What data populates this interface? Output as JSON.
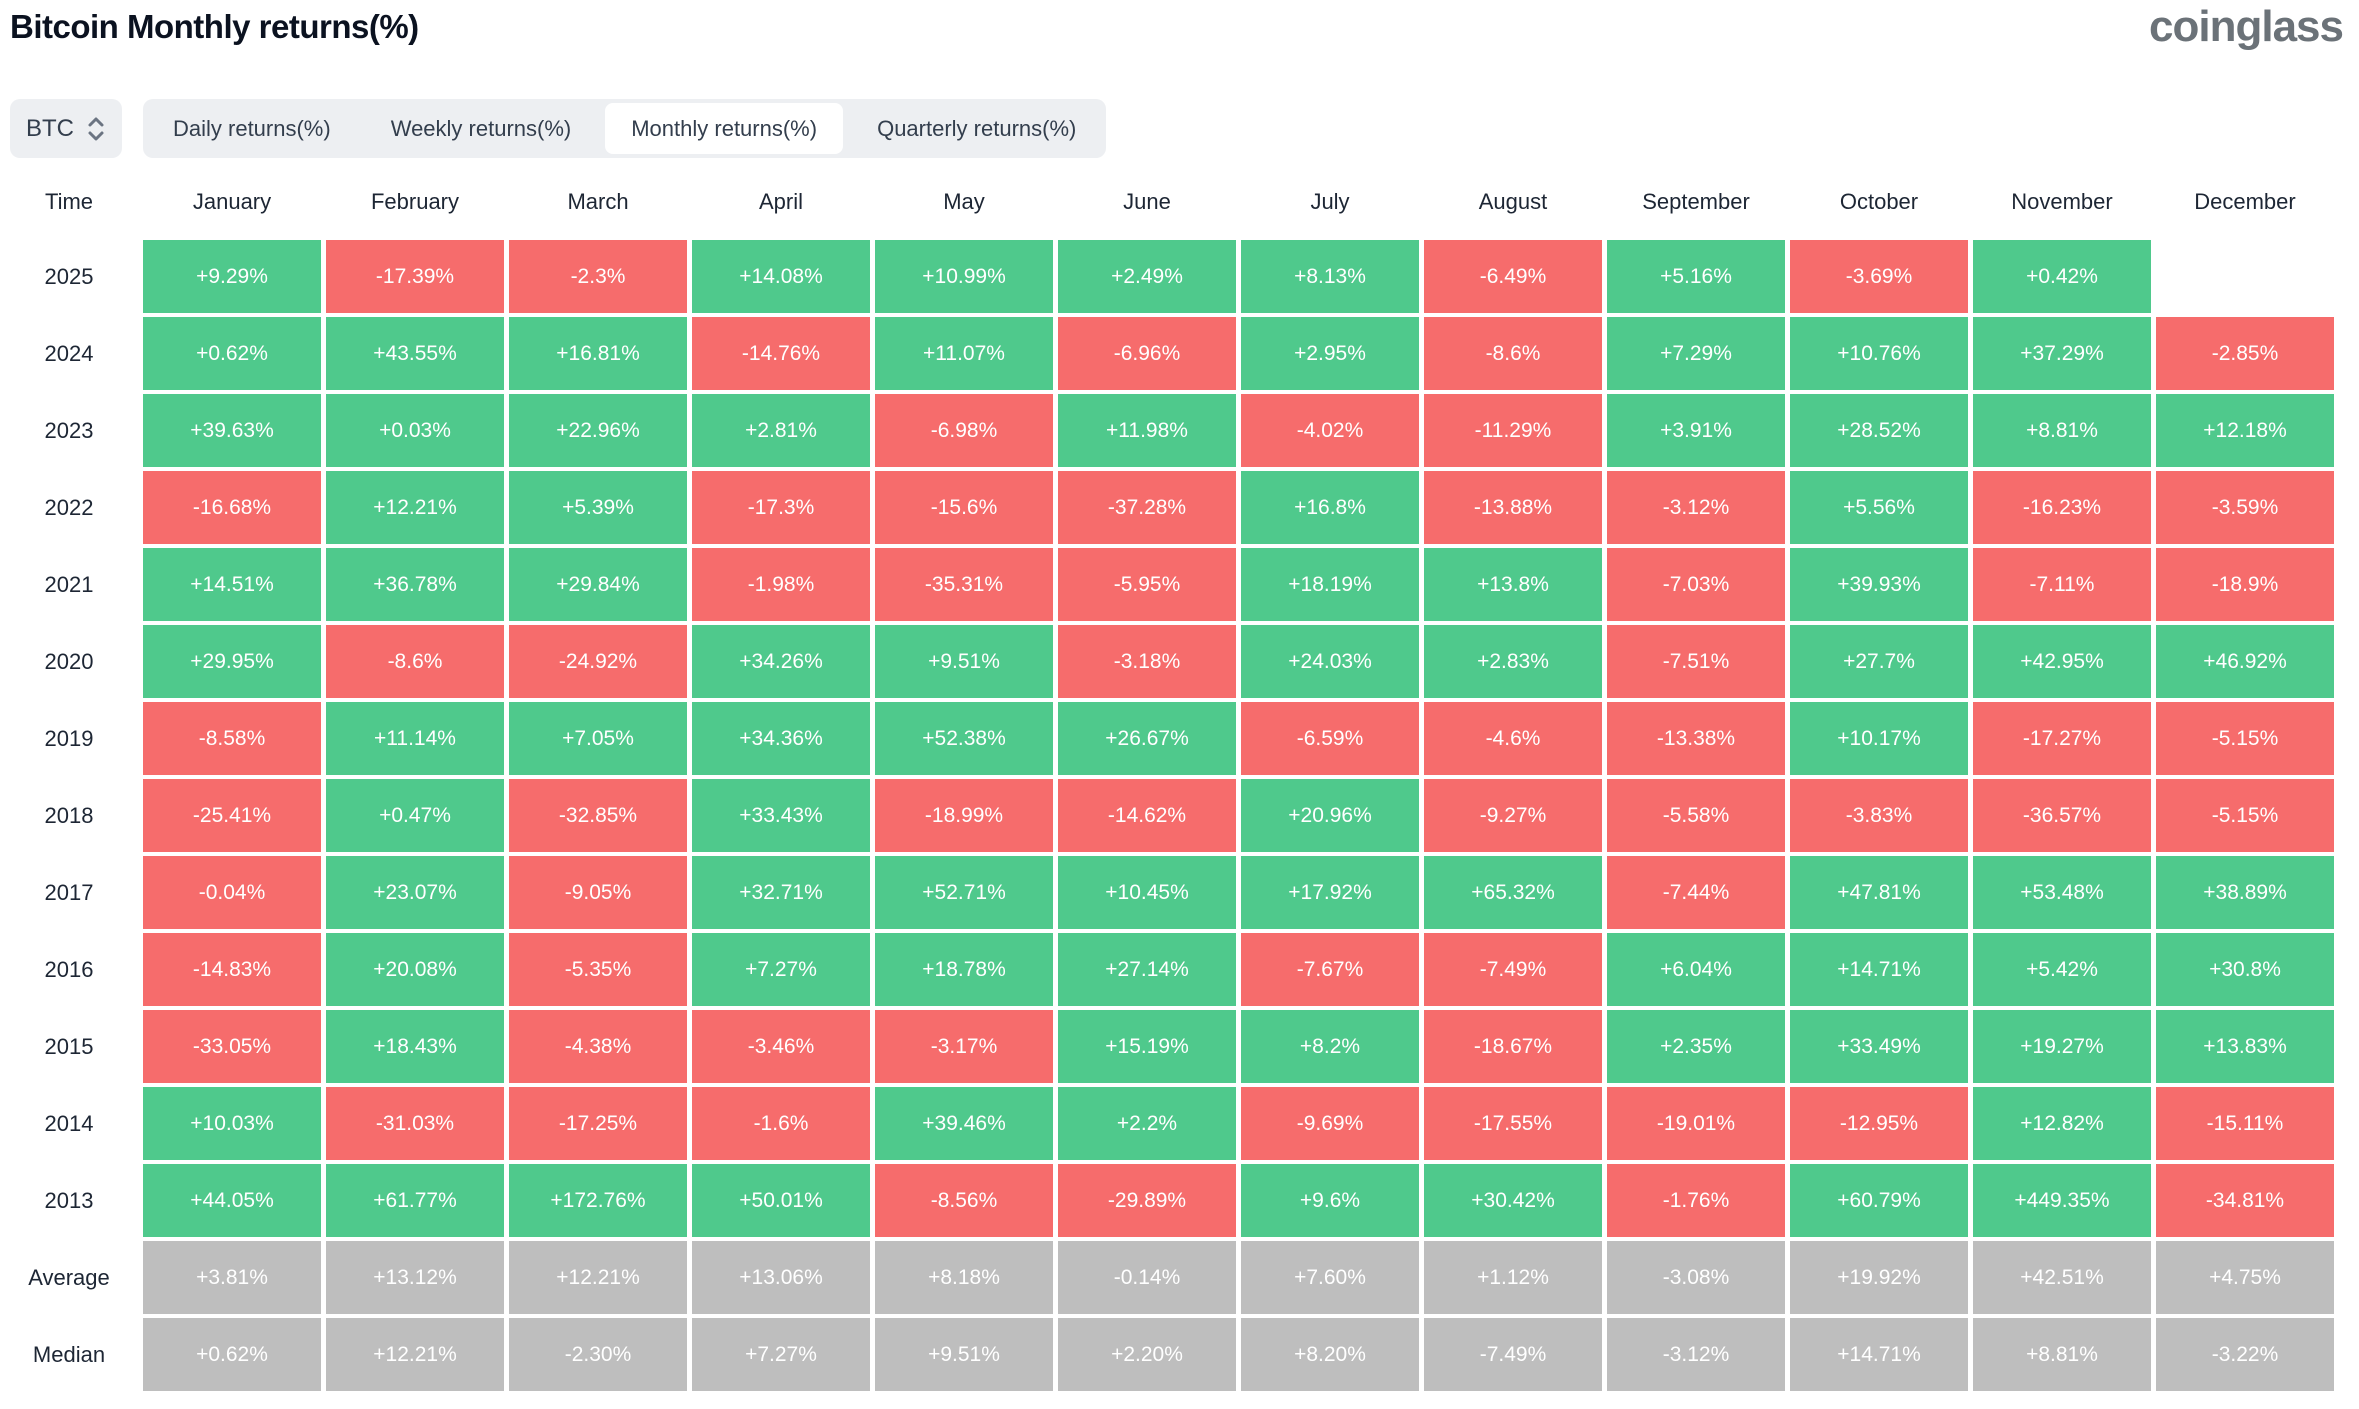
{
  "header": {
    "title": "Bitcoin Monthly returns(%)",
    "logo": "coinglass"
  },
  "controls": {
    "symbol": "BTC",
    "tabs": [
      {
        "label": "Daily returns(%)",
        "active": false
      },
      {
        "label": "Weekly returns(%)",
        "active": false
      },
      {
        "label": "Monthly returns(%)",
        "active": true
      },
      {
        "label": "Quarterly returns(%)",
        "active": false
      }
    ]
  },
  "colors": {
    "positive": "#4FC98C",
    "negative": "#F66C6C",
    "summary": "#BEBEBE"
  },
  "chart_data": {
    "type": "heatmap",
    "title": "Bitcoin Monthly returns(%)",
    "columns": [
      "Time",
      "January",
      "February",
      "March",
      "April",
      "May",
      "June",
      "July",
      "August",
      "September",
      "October",
      "November",
      "December"
    ],
    "rows": [
      {
        "label": "2025",
        "kind": "year",
        "values": [
          "+9.29%",
          "-17.39%",
          "-2.3%",
          "+14.08%",
          "+10.99%",
          "+2.49%",
          "+8.13%",
          "-6.49%",
          "+5.16%",
          "-3.69%",
          "+0.42%",
          ""
        ]
      },
      {
        "label": "2024",
        "kind": "year",
        "values": [
          "+0.62%",
          "+43.55%",
          "+16.81%",
          "-14.76%",
          "+11.07%",
          "-6.96%",
          "+2.95%",
          "-8.6%",
          "+7.29%",
          "+10.76%",
          "+37.29%",
          "-2.85%"
        ]
      },
      {
        "label": "2023",
        "kind": "year",
        "values": [
          "+39.63%",
          "+0.03%",
          "+22.96%",
          "+2.81%",
          "-6.98%",
          "+11.98%",
          "-4.02%",
          "-11.29%",
          "+3.91%",
          "+28.52%",
          "+8.81%",
          "+12.18%"
        ]
      },
      {
        "label": "2022",
        "kind": "year",
        "values": [
          "-16.68%",
          "+12.21%",
          "+5.39%",
          "-17.3%",
          "-15.6%",
          "-37.28%",
          "+16.8%",
          "-13.88%",
          "-3.12%",
          "+5.56%",
          "-16.23%",
          "-3.59%"
        ]
      },
      {
        "label": "2021",
        "kind": "year",
        "values": [
          "+14.51%",
          "+36.78%",
          "+29.84%",
          "-1.98%",
          "-35.31%",
          "-5.95%",
          "+18.19%",
          "+13.8%",
          "-7.03%",
          "+39.93%",
          "-7.11%",
          "-18.9%"
        ]
      },
      {
        "label": "2020",
        "kind": "year",
        "values": [
          "+29.95%",
          "-8.6%",
          "-24.92%",
          "+34.26%",
          "+9.51%",
          "-3.18%",
          "+24.03%",
          "+2.83%",
          "-7.51%",
          "+27.7%",
          "+42.95%",
          "+46.92%"
        ]
      },
      {
        "label": "2019",
        "kind": "year",
        "values": [
          "-8.58%",
          "+11.14%",
          "+7.05%",
          "+34.36%",
          "+52.38%",
          "+26.67%",
          "-6.59%",
          "-4.6%",
          "-13.38%",
          "+10.17%",
          "-17.27%",
          "-5.15%"
        ]
      },
      {
        "label": "2018",
        "kind": "year",
        "values": [
          "-25.41%",
          "+0.47%",
          "-32.85%",
          "+33.43%",
          "-18.99%",
          "-14.62%",
          "+20.96%",
          "-9.27%",
          "-5.58%",
          "-3.83%",
          "-36.57%",
          "-5.15%"
        ]
      },
      {
        "label": "2017",
        "kind": "year",
        "values": [
          "-0.04%",
          "+23.07%",
          "-9.05%",
          "+32.71%",
          "+52.71%",
          "+10.45%",
          "+17.92%",
          "+65.32%",
          "-7.44%",
          "+47.81%",
          "+53.48%",
          "+38.89%"
        ]
      },
      {
        "label": "2016",
        "kind": "year",
        "values": [
          "-14.83%",
          "+20.08%",
          "-5.35%",
          "+7.27%",
          "+18.78%",
          "+27.14%",
          "-7.67%",
          "-7.49%",
          "+6.04%",
          "+14.71%",
          "+5.42%",
          "+30.8%"
        ]
      },
      {
        "label": "2015",
        "kind": "year",
        "values": [
          "-33.05%",
          "+18.43%",
          "-4.38%",
          "-3.46%",
          "-3.17%",
          "+15.19%",
          "+8.2%",
          "-18.67%",
          "+2.35%",
          "+33.49%",
          "+19.27%",
          "+13.83%"
        ]
      },
      {
        "label": "2014",
        "kind": "year",
        "values": [
          "+10.03%",
          "-31.03%",
          "-17.25%",
          "-1.6%",
          "+39.46%",
          "+2.2%",
          "-9.69%",
          "-17.55%",
          "-19.01%",
          "-12.95%",
          "+12.82%",
          "-15.11%"
        ]
      },
      {
        "label": "2013",
        "kind": "year",
        "values": [
          "+44.05%",
          "+61.77%",
          "+172.76%",
          "+50.01%",
          "-8.56%",
          "-29.89%",
          "+9.6%",
          "+30.42%",
          "-1.76%",
          "+60.79%",
          "+449.35%",
          "-34.81%"
        ]
      },
      {
        "label": "Average",
        "kind": "summary",
        "values": [
          "+3.81%",
          "+13.12%",
          "+12.21%",
          "+13.06%",
          "+8.18%",
          "-0.14%",
          "+7.60%",
          "+1.12%",
          "-3.08%",
          "+19.92%",
          "+42.51%",
          "+4.75%"
        ]
      },
      {
        "label": "Median",
        "kind": "summary",
        "values": [
          "+0.62%",
          "+12.21%",
          "-2.30%",
          "+7.27%",
          "+9.51%",
          "+2.20%",
          "+8.20%",
          "-7.49%",
          "-3.12%",
          "+14.71%",
          "+8.81%",
          "-3.22%"
        ]
      }
    ]
  }
}
